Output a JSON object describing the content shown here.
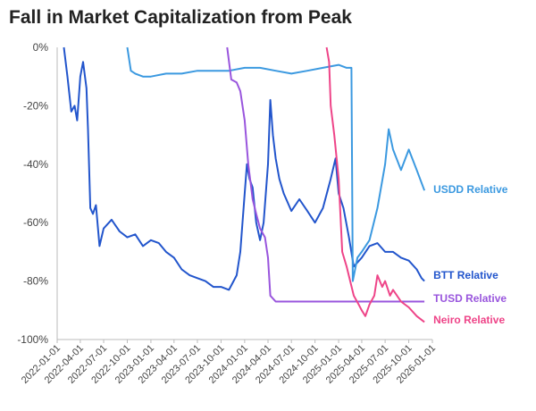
{
  "chart_data": {
    "type": "line",
    "title": "Fall in Market Capitalization from Peak",
    "xlabel": "",
    "ylabel": "",
    "ylim": [
      -100,
      0
    ],
    "y_ticks": [
      0,
      -20,
      -40,
      -60,
      -80,
      -100
    ],
    "y_tick_labels": [
      "0%",
      "-20%",
      "-40%",
      "-60%",
      "-80%",
      "-100%"
    ],
    "xlim": [
      "2022-01-01",
      "2026-01-01"
    ],
    "x_tick_labels": [
      "2022-01-01",
      "2022-04-01",
      "2022-07-01",
      "2022-10-01",
      "2023-01-01",
      "2023-04-01",
      "2023-07-01",
      "2023-10-01",
      "2024-01-01",
      "2024-04-01",
      "2024-07-01",
      "2024-10-01",
      "2025-01-01",
      "2025-04-01",
      "2025-07-01",
      "2025-10-01",
      "2026-01-01"
    ],
    "grid": false,
    "legend": "end-of-line labels",
    "series": [
      {
        "name": "BTT Relative",
        "color": "#2255cc",
        "points": [
          [
            "2022-01-27",
            0
          ],
          [
            "2022-02-10",
            -10
          ],
          [
            "2022-02-25",
            -22
          ],
          [
            "2022-03-10",
            -20
          ],
          [
            "2022-03-20",
            -25
          ],
          [
            "2022-04-01",
            -10
          ],
          [
            "2022-04-12",
            -5
          ],
          [
            "2022-04-25",
            -14
          ],
          [
            "2022-05-01",
            -28
          ],
          [
            "2022-05-10",
            -55
          ],
          [
            "2022-05-20",
            -57
          ],
          [
            "2022-06-01",
            -54
          ],
          [
            "2022-06-15",
            -68
          ],
          [
            "2022-07-01",
            -62
          ],
          [
            "2022-08-01",
            -59
          ],
          [
            "2022-09-01",
            -63
          ],
          [
            "2022-10-01",
            -65
          ],
          [
            "2022-11-01",
            -64
          ],
          [
            "2022-12-01",
            -68
          ],
          [
            "2023-01-01",
            -66
          ],
          [
            "2023-02-01",
            -67
          ],
          [
            "2023-03-01",
            -70
          ],
          [
            "2023-04-01",
            -72
          ],
          [
            "2023-05-01",
            -76
          ],
          [
            "2023-06-01",
            -78
          ],
          [
            "2023-07-01",
            -79
          ],
          [
            "2023-08-01",
            -80
          ],
          [
            "2023-09-01",
            -82
          ],
          [
            "2023-10-01",
            -82
          ],
          [
            "2023-11-01",
            -83
          ],
          [
            "2023-12-01",
            -78
          ],
          [
            "2023-12-15",
            -70
          ],
          [
            "2024-01-01",
            -50
          ],
          [
            "2024-01-10",
            -40
          ],
          [
            "2024-01-20",
            -45
          ],
          [
            "2024-02-01",
            -48
          ],
          [
            "2024-02-15",
            -60
          ],
          [
            "2024-03-01",
            -66
          ],
          [
            "2024-03-15",
            -60
          ],
          [
            "2024-04-01",
            -40
          ],
          [
            "2024-04-10",
            -18
          ],
          [
            "2024-04-20",
            -30
          ],
          [
            "2024-05-01",
            -38
          ],
          [
            "2024-05-15",
            -45
          ],
          [
            "2024-06-01",
            -50
          ],
          [
            "2024-07-01",
            -56
          ],
          [
            "2024-08-01",
            -52
          ],
          [
            "2024-09-01",
            -56
          ],
          [
            "2024-10-01",
            -60
          ],
          [
            "2024-11-01",
            -55
          ],
          [
            "2024-12-01",
            -45
          ],
          [
            "2024-12-20",
            -38
          ],
          [
            "2025-01-01",
            -50
          ],
          [
            "2025-01-20",
            -55
          ],
          [
            "2025-02-10",
            -65
          ],
          [
            "2025-03-01",
            -75
          ],
          [
            "2025-04-01",
            -72
          ],
          [
            "2025-05-01",
            -68
          ],
          [
            "2025-06-01",
            -67
          ],
          [
            "2025-07-01",
            -70
          ],
          [
            "2025-08-01",
            -70
          ],
          [
            "2025-09-01",
            -72
          ],
          [
            "2025-10-01",
            -73
          ],
          [
            "2025-11-01",
            -76
          ],
          [
            "2025-11-20",
            -79
          ],
          [
            "2025-12-01",
            -80
          ]
        ]
      },
      {
        "name": "USDD Relative",
        "color": "#3b99e0",
        "points": [
          [
            "2022-10-01",
            0
          ],
          [
            "2022-10-15",
            -8
          ],
          [
            "2022-11-01",
            -9
          ],
          [
            "2022-12-01",
            -10
          ],
          [
            "2023-01-01",
            -10
          ],
          [
            "2023-03-01",
            -9
          ],
          [
            "2023-05-01",
            -9
          ],
          [
            "2023-07-01",
            -8
          ],
          [
            "2023-09-01",
            -8
          ],
          [
            "2023-11-01",
            -8
          ],
          [
            "2024-01-01",
            -7
          ],
          [
            "2024-03-01",
            -7
          ],
          [
            "2024-05-01",
            -8
          ],
          [
            "2024-07-01",
            -9
          ],
          [
            "2024-09-01",
            -8
          ],
          [
            "2024-11-01",
            -7
          ],
          [
            "2025-01-01",
            -6
          ],
          [
            "2025-02-01",
            -7
          ],
          [
            "2025-02-20",
            -7
          ],
          [
            "2025-02-25",
            -80
          ],
          [
            "2025-03-15",
            -72
          ],
          [
            "2025-04-01",
            -70
          ],
          [
            "2025-05-01",
            -66
          ],
          [
            "2025-06-01",
            -55
          ],
          [
            "2025-07-01",
            -40
          ],
          [
            "2025-07-15",
            -28
          ],
          [
            "2025-08-01",
            -35
          ],
          [
            "2025-09-01",
            -42
          ],
          [
            "2025-10-01",
            -35
          ],
          [
            "2025-11-01",
            -42
          ],
          [
            "2025-12-01",
            -49
          ]
        ]
      },
      {
        "name": "TUSD Relative",
        "color": "#9955dd",
        "points": [
          [
            "2023-10-25",
            0
          ],
          [
            "2023-11-10",
            -11
          ],
          [
            "2023-12-01",
            -12
          ],
          [
            "2023-12-15",
            -15
          ],
          [
            "2024-01-01",
            -25
          ],
          [
            "2024-01-15",
            -40
          ],
          [
            "2024-02-01",
            -52
          ],
          [
            "2024-02-15",
            -57
          ],
          [
            "2024-03-01",
            -62
          ],
          [
            "2024-03-20",
            -65
          ],
          [
            "2024-04-01",
            -72
          ],
          [
            "2024-04-10",
            -85
          ],
          [
            "2024-05-01",
            -87
          ],
          [
            "2024-07-01",
            -87
          ],
          [
            "2024-10-01",
            -87
          ],
          [
            "2025-01-01",
            -87
          ],
          [
            "2025-04-01",
            -87
          ],
          [
            "2025-07-01",
            -87
          ],
          [
            "2025-10-01",
            -87
          ],
          [
            "2025-12-01",
            -87
          ]
        ]
      },
      {
        "name": "Neiro Relative",
        "color": "#ee4488",
        "points": [
          [
            "2024-11-15",
            0
          ],
          [
            "2024-11-25",
            -5
          ],
          [
            "2024-12-01",
            -20
          ],
          [
            "2024-12-15",
            -30
          ],
          [
            "2025-01-01",
            -45
          ],
          [
            "2025-01-15",
            -70
          ],
          [
            "2025-02-01",
            -75
          ],
          [
            "2025-02-15",
            -80
          ],
          [
            "2025-03-01",
            -85
          ],
          [
            "2025-03-20",
            -88
          ],
          [
            "2025-04-01",
            -90
          ],
          [
            "2025-04-15",
            -92
          ],
          [
            "2025-05-01",
            -88
          ],
          [
            "2025-05-20",
            -85
          ],
          [
            "2025-06-01",
            -78
          ],
          [
            "2025-06-20",
            -82
          ],
          [
            "2025-07-01",
            -80
          ],
          [
            "2025-07-20",
            -85
          ],
          [
            "2025-08-01",
            -83
          ],
          [
            "2025-09-01",
            -87
          ],
          [
            "2025-10-01",
            -89
          ],
          [
            "2025-11-01",
            -92
          ],
          [
            "2025-12-01",
            -94
          ]
        ]
      }
    ]
  }
}
